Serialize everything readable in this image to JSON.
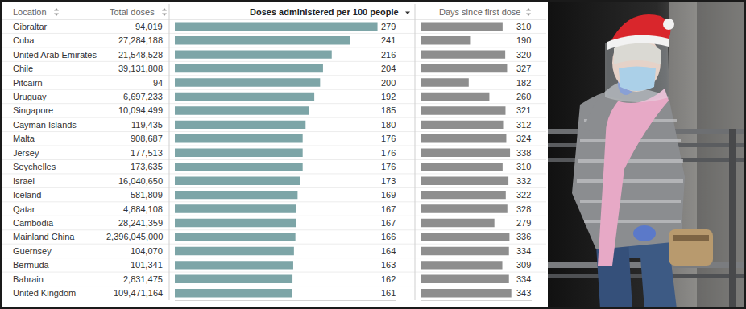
{
  "table": {
    "headers": [
      "Location",
      "Total doses"
    ],
    "total_doses": [
      "94,019",
      "27,284,188",
      "21,548,528",
      "39,131,808",
      "94",
      "6,697,233",
      "10,094,499",
      "119,435",
      "908,687",
      "177,513",
      "173,635",
      "16,040,650",
      "581,809",
      "4,884,108",
      "28,241,359",
      "2,396,045,000",
      "104,070",
      "101,341",
      "2,831,475",
      "109,471,164"
    ]
  },
  "chart_data": [
    {
      "type": "bar",
      "orientation": "horizontal",
      "title": "Doses administered per 100 people",
      "categories": [
        "Gibraltar",
        "Cuba",
        "United Arab Emirates",
        "Chile",
        "Pitcairn",
        "Uruguay",
        "Singapore",
        "Cayman Islands",
        "Malta",
        "Jersey",
        "Seychelles",
        "Israel",
        "Iceland",
        "Qatar",
        "Cambodia",
        "Mainland China",
        "Guernsey",
        "Bermuda",
        "Bahrain",
        "United Kingdom"
      ],
      "values": [
        279,
        241,
        216,
        204,
        200,
        192,
        185,
        180,
        176,
        176,
        176,
        173,
        169,
        167,
        167,
        166,
        164,
        163,
        162,
        161
      ],
      "color": "#7da5a7",
      "xlim": [
        0,
        305
      ],
      "xticks": [],
      "tick_labels": false,
      "data_labels": true,
      "grid": false
    },
    {
      "type": "bar",
      "orientation": "horizontal",
      "title": "Days since first dose",
      "categories": [
        "Gibraltar",
        "Cuba",
        "United Arab Emirates",
        "Chile",
        "Pitcairn",
        "Uruguay",
        "Singapore",
        "Cayman Islands",
        "Malta",
        "Jersey",
        "Seychelles",
        "Israel",
        "Iceland",
        "Qatar",
        "Cambodia",
        "Mainland China",
        "Guernsey",
        "Bermuda",
        "Bahrain",
        "United Kingdom"
      ],
      "values": [
        310,
        190,
        320,
        327,
        182,
        260,
        321,
        312,
        324,
        338,
        310,
        332,
        322,
        328,
        279,
        336,
        334,
        309,
        334,
        343
      ],
      "color": "#8e8e8e",
      "xlim": [
        0,
        420
      ],
      "xticks": [],
      "tick_labels": false,
      "data_labels": true,
      "grid": false
    }
  ]
}
